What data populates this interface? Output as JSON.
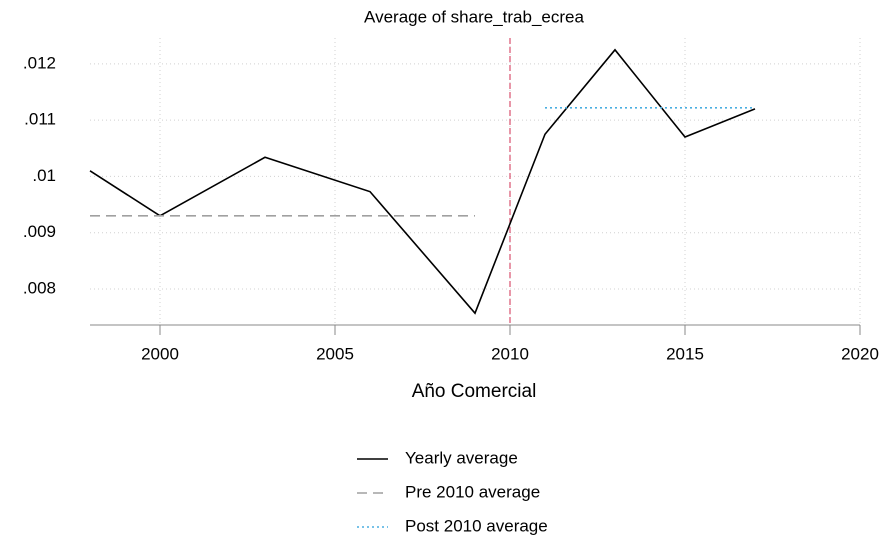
{
  "chart_data": {
    "type": "line",
    "title": "Average of share_trab_ecrea",
    "xlabel": "Año Comercial",
    "xlim": [
      1998,
      2020
    ],
    "ylim": [
      0.00736,
      0.01246
    ],
    "xticks": [
      2000,
      2005,
      2010,
      2015,
      2020
    ],
    "yticks": [
      {
        "value": 0.008,
        "label": ".008"
      },
      {
        "value": 0.009,
        "label": ".009"
      },
      {
        "value": 0.01,
        "label": ".01"
      },
      {
        "value": 0.011,
        "label": ".011"
      },
      {
        "value": 0.012,
        "label": ".012"
      }
    ],
    "grid": true,
    "vline": {
      "x": 2010,
      "color": "#d9506e"
    },
    "series": [
      {
        "name": "Yearly average",
        "color": "#000000",
        "dash": "solid",
        "x": [
          1998,
          2000,
          2003,
          2006,
          2009,
          2011,
          2013,
          2015,
          2017
        ],
        "values": [
          0.0101,
          0.0093,
          0.01034,
          0.00973,
          0.00757,
          0.01075,
          0.01225,
          0.0107,
          0.0112
        ]
      },
      {
        "name": "Pre 2010 average",
        "color": "#a0a0a0",
        "dash": "dashed",
        "x": [
          1998,
          2009
        ],
        "values": [
          0.0093,
          0.0093
        ]
      },
      {
        "name": "Post 2010 average",
        "color": "#4aaee0",
        "dash": "dotted",
        "x": [
          2011,
          2017
        ],
        "values": [
          0.01122,
          0.01122
        ]
      }
    ]
  }
}
